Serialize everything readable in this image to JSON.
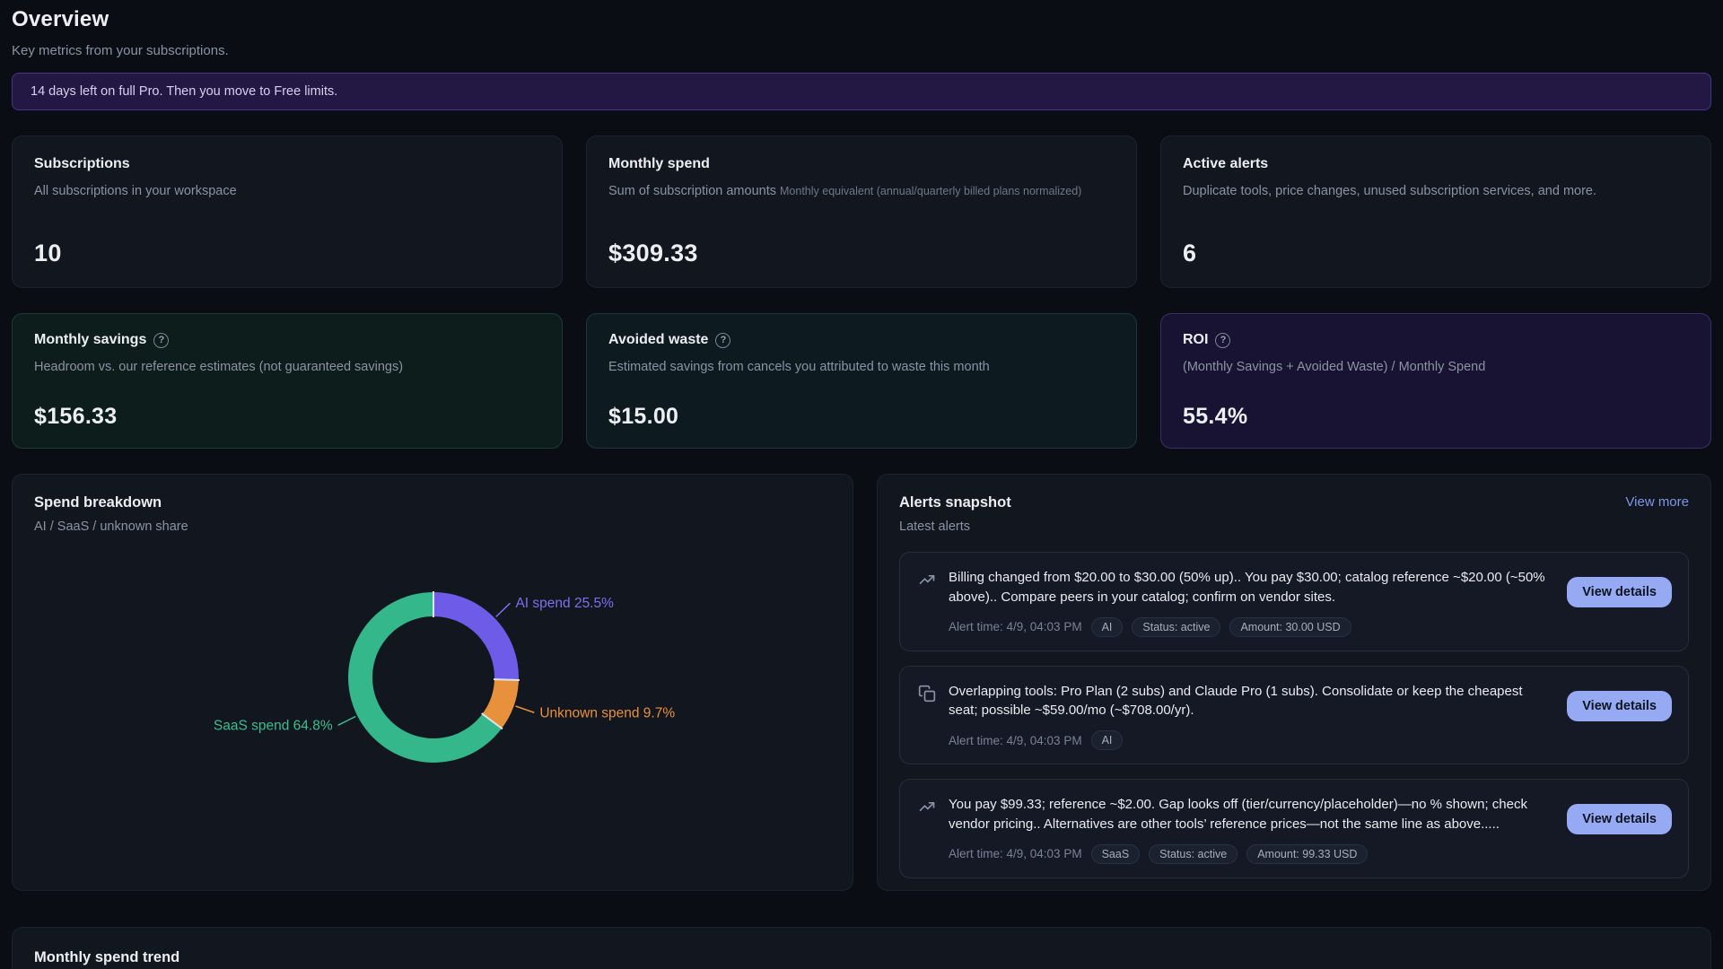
{
  "page": {
    "title": "Overview",
    "subtitle": "Key metrics from your subscriptions.",
    "banner": "14 days left on full Pro. Then you move to Free limits."
  },
  "stat_cards": [
    {
      "title": "Subscriptions",
      "desc": "All subscriptions in your workspace",
      "value": "10"
    },
    {
      "title": "Monthly spend",
      "desc": "Sum of subscription amounts",
      "desc_small": "Monthly equivalent (annual/quarterly billed plans normalized)",
      "value": "$309.33"
    },
    {
      "title": "Active alerts",
      "desc": "Duplicate tools, price changes, unused subscription services, and more.",
      "value": "6"
    }
  ],
  "metric_cards": [
    {
      "title": "Monthly savings",
      "desc": "Headroom vs. our reference estimates (not guaranteed savings)",
      "value": "$156.33"
    },
    {
      "title": "Avoided waste",
      "desc": "Estimated savings from cancels you attributed to waste this month",
      "value": "$15.00"
    },
    {
      "title": "ROI",
      "desc": "(Monthly Savings + Avoided Waste) / Monthly Spend",
      "value": "55.4%"
    }
  ],
  "spend_breakdown": {
    "title": "Spend breakdown",
    "subtitle": "AI / SaaS / unknown share"
  },
  "chart_data": {
    "type": "pie",
    "title": "Spend breakdown",
    "donut": true,
    "label_format": "{label} {value}%",
    "slices": [
      {
        "label": "AI spend",
        "value": 25.5,
        "color": "#6e5be8",
        "label_color": "#7f6ef0"
      },
      {
        "label": "Unknown spend",
        "value": 9.7,
        "color": "#e8913c",
        "label_color": "#e8913c"
      },
      {
        "label": "SaaS spend",
        "value": 64.8,
        "color": "#34b78a",
        "label_color": "#3dbd8f"
      }
    ]
  },
  "alerts": {
    "title": "Alerts snapshot",
    "subtitle": "Latest alerts",
    "view_more": "View more",
    "view_details_label": "View details",
    "items": [
      {
        "icon": "trending-up",
        "text": "Billing changed from $20.00 to $30.00 (50% up).. You pay $30.00; catalog reference ~$20.00 (~50% above).. Compare peers in your catalog; confirm on vendor sites.",
        "time": "Alert time: 4/9, 04:03 PM",
        "tags": [
          "AI",
          "Status: active",
          "Amount: 30.00 USD"
        ]
      },
      {
        "icon": "copy",
        "text": "Overlapping tools: Pro Plan (2 subs) and Claude Pro (1 subs). Consolidate or keep the cheapest seat; possible ~$59.00/mo (~$708.00/yr).",
        "time": "Alert time: 4/9, 04:03 PM",
        "tags": [
          "AI"
        ]
      },
      {
        "icon": "trending-up",
        "text": "You pay $99.33; reference ~$2.00. Gap looks off (tier/currency/placeholder)—no % shown; check vendor pricing.. Alternatives are other tools’ reference prices—not the same line as above.....",
        "time": "Alert time: 4/9, 04:03 PM",
        "tags": [
          "SaaS",
          "Status: active",
          "Amount: 99.33 USD"
        ]
      }
    ]
  },
  "trend": {
    "title": "Monthly spend trend"
  }
}
